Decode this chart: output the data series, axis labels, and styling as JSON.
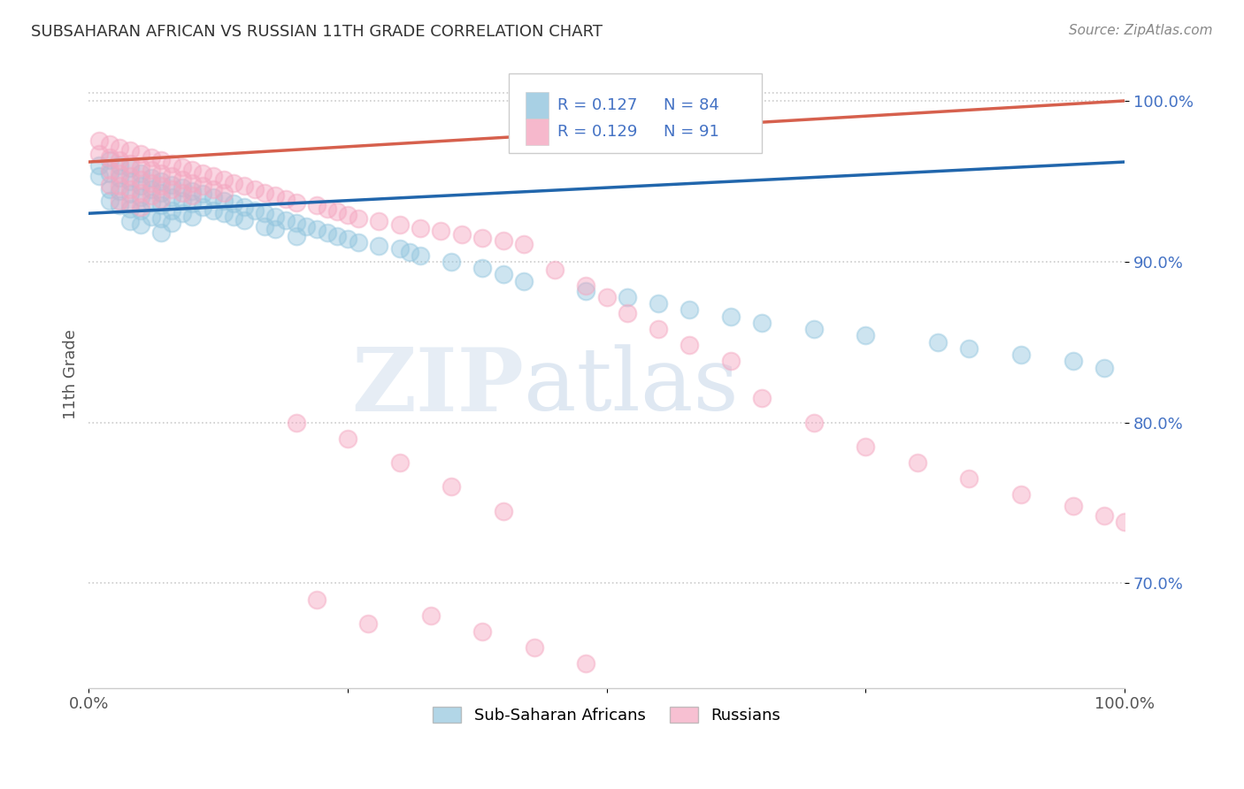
{
  "title": "SUBSAHARAN AFRICAN VS RUSSIAN 11TH GRADE CORRELATION CHART",
  "source": "Source: ZipAtlas.com",
  "ylabel": "11th Grade",
  "ytick_labels": [
    "100.0%",
    "90.0%",
    "80.0%",
    "70.0%"
  ],
  "ytick_values": [
    1.0,
    0.9,
    0.8,
    0.7
  ],
  "xlim": [
    0.0,
    1.0
  ],
  "ylim": [
    0.635,
    1.025
  ],
  "legend_r_blue": "R = 0.127",
  "legend_n_blue": "N = 84",
  "legend_r_pink": "R = 0.129",
  "legend_n_pink": "N = 91",
  "blue_color": "#92c5de",
  "pink_color": "#f4a6c0",
  "blue_line_color": "#2166ac",
  "pink_line_color": "#d6604d",
  "watermark_zip": "ZIP",
  "watermark_atlas": "atlas",
  "background_color": "#ffffff",
  "grid_color": "#cccccc",
  "blue_trend_y_start": 0.93,
  "blue_trend_y_end": 0.962,
  "pink_trend_y_start": 0.962,
  "pink_trend_y_end": 1.0,
  "blue_scatter_x": [
    0.01,
    0.01,
    0.02,
    0.02,
    0.02,
    0.02,
    0.03,
    0.03,
    0.03,
    0.03,
    0.04,
    0.04,
    0.04,
    0.04,
    0.04,
    0.05,
    0.05,
    0.05,
    0.05,
    0.05,
    0.06,
    0.06,
    0.06,
    0.06,
    0.07,
    0.07,
    0.07,
    0.07,
    0.07,
    0.08,
    0.08,
    0.08,
    0.08,
    0.09,
    0.09,
    0.09,
    0.1,
    0.1,
    0.1,
    0.11,
    0.11,
    0.12,
    0.12,
    0.13,
    0.13,
    0.14,
    0.14,
    0.15,
    0.15,
    0.16,
    0.17,
    0.17,
    0.18,
    0.18,
    0.19,
    0.2,
    0.2,
    0.21,
    0.22,
    0.23,
    0.24,
    0.25,
    0.26,
    0.28,
    0.3,
    0.31,
    0.32,
    0.35,
    0.38,
    0.4,
    0.42,
    0.48,
    0.52,
    0.55,
    0.58,
    0.62,
    0.65,
    0.7,
    0.75,
    0.82,
    0.85,
    0.9,
    0.95,
    0.98
  ],
  "blue_scatter_y": [
    0.96,
    0.953,
    0.963,
    0.955,
    0.945,
    0.938,
    0.96,
    0.952,
    0.944,
    0.935,
    0.958,
    0.95,
    0.942,
    0.933,
    0.925,
    0.955,
    0.947,
    0.94,
    0.932,
    0.923,
    0.952,
    0.945,
    0.937,
    0.928,
    0.95,
    0.943,
    0.935,
    0.927,
    0.918,
    0.948,
    0.94,
    0.932,
    0.924,
    0.946,
    0.938,
    0.93,
    0.944,
    0.936,
    0.928,
    0.942,
    0.934,
    0.94,
    0.932,
    0.938,
    0.93,
    0.936,
    0.928,
    0.934,
    0.926,
    0.932,
    0.93,
    0.922,
    0.928,
    0.92,
    0.926,
    0.924,
    0.916,
    0.922,
    0.92,
    0.918,
    0.916,
    0.914,
    0.912,
    0.91,
    0.908,
    0.906,
    0.904,
    0.9,
    0.896,
    0.892,
    0.888,
    0.882,
    0.878,
    0.874,
    0.87,
    0.866,
    0.862,
    0.858,
    0.854,
    0.85,
    0.846,
    0.842,
    0.838,
    0.834
  ],
  "pink_scatter_x": [
    0.01,
    0.01,
    0.02,
    0.02,
    0.02,
    0.02,
    0.03,
    0.03,
    0.03,
    0.03,
    0.03,
    0.04,
    0.04,
    0.04,
    0.04,
    0.04,
    0.05,
    0.05,
    0.05,
    0.05,
    0.05,
    0.06,
    0.06,
    0.06,
    0.06,
    0.07,
    0.07,
    0.07,
    0.07,
    0.08,
    0.08,
    0.08,
    0.09,
    0.09,
    0.09,
    0.1,
    0.1,
    0.1,
    0.11,
    0.11,
    0.12,
    0.12,
    0.13,
    0.13,
    0.14,
    0.15,
    0.16,
    0.17,
    0.18,
    0.19,
    0.2,
    0.22,
    0.23,
    0.24,
    0.25,
    0.26,
    0.28,
    0.3,
    0.32,
    0.34,
    0.36,
    0.38,
    0.4,
    0.42,
    0.45,
    0.48,
    0.5,
    0.52,
    0.55,
    0.58,
    0.62,
    0.65,
    0.7,
    0.75,
    0.8,
    0.85,
    0.9,
    0.95,
    0.98,
    1.0,
    0.2,
    0.25,
    0.3,
    0.35,
    0.4,
    0.22,
    0.27,
    0.33,
    0.38,
    0.43,
    0.48
  ],
  "pink_scatter_y": [
    0.975,
    0.967,
    0.973,
    0.965,
    0.957,
    0.948,
    0.971,
    0.963,
    0.955,
    0.947,
    0.938,
    0.969,
    0.961,
    0.953,
    0.945,
    0.936,
    0.967,
    0.959,
    0.951,
    0.943,
    0.934,
    0.965,
    0.957,
    0.949,
    0.941,
    0.963,
    0.955,
    0.947,
    0.939,
    0.961,
    0.953,
    0.945,
    0.959,
    0.951,
    0.943,
    0.957,
    0.949,
    0.941,
    0.955,
    0.947,
    0.953,
    0.945,
    0.951,
    0.943,
    0.949,
    0.947,
    0.945,
    0.943,
    0.941,
    0.939,
    0.937,
    0.935,
    0.933,
    0.931,
    0.929,
    0.927,
    0.925,
    0.923,
    0.921,
    0.919,
    0.917,
    0.915,
    0.913,
    0.911,
    0.895,
    0.885,
    0.878,
    0.868,
    0.858,
    0.848,
    0.838,
    0.815,
    0.8,
    0.785,
    0.775,
    0.765,
    0.755,
    0.748,
    0.742,
    0.738,
    0.8,
    0.79,
    0.775,
    0.76,
    0.745,
    0.69,
    0.675,
    0.68,
    0.67,
    0.66,
    0.65
  ]
}
